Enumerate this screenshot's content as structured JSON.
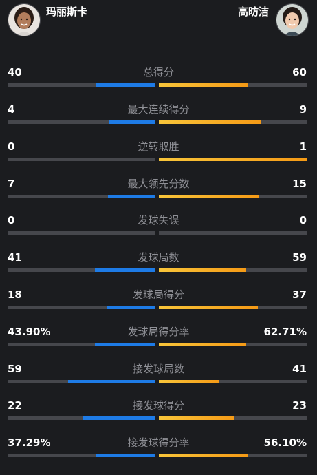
{
  "players": {
    "left": {
      "name": "玛丽斯卡",
      "avatar_icon": "player-photo-icon"
    },
    "right": {
      "name": "高昉洁",
      "avatar_icon": "player-photo-icon"
    }
  },
  "colors": {
    "left_bar": "#1e7be6",
    "right_bar": "#f59a16",
    "track": "#46474c",
    "label": "#8f9096"
  },
  "stats": [
    {
      "label": "总得分",
      "left": "40",
      "right": "60",
      "left_fill": 0.4,
      "right_fill": 0.6
    },
    {
      "label": "最大连续得分",
      "left": "4",
      "right": "9",
      "left_fill": 0.31,
      "right_fill": 0.69
    },
    {
      "label": "逆转取胜",
      "left": "0",
      "right": "1",
      "left_fill": 0.0,
      "right_fill": 1.0
    },
    {
      "label": "最大领先分数",
      "left": "7",
      "right": "15",
      "left_fill": 0.32,
      "right_fill": 0.68
    },
    {
      "label": "发球失误",
      "left": "0",
      "right": "0",
      "left_fill": 0.0,
      "right_fill": 0.0
    },
    {
      "label": "发球局数",
      "left": "41",
      "right": "59",
      "left_fill": 0.41,
      "right_fill": 0.59
    },
    {
      "label": "发球局得分",
      "left": "18",
      "right": "37",
      "left_fill": 0.33,
      "right_fill": 0.67
    },
    {
      "label": "发球局得分率",
      "left": "43.90%",
      "right": "62.71%",
      "left_fill": 0.41,
      "right_fill": 0.59
    },
    {
      "label": "接发球局数",
      "left": "59",
      "right": "41",
      "left_fill": 0.59,
      "right_fill": 0.41
    },
    {
      "label": "接发球得分",
      "left": "22",
      "right": "23",
      "left_fill": 0.49,
      "right_fill": 0.51
    },
    {
      "label": "接发球得分率",
      "left": "37.29%",
      "right": "56.10%",
      "left_fill": 0.4,
      "right_fill": 0.6
    }
  ]
}
